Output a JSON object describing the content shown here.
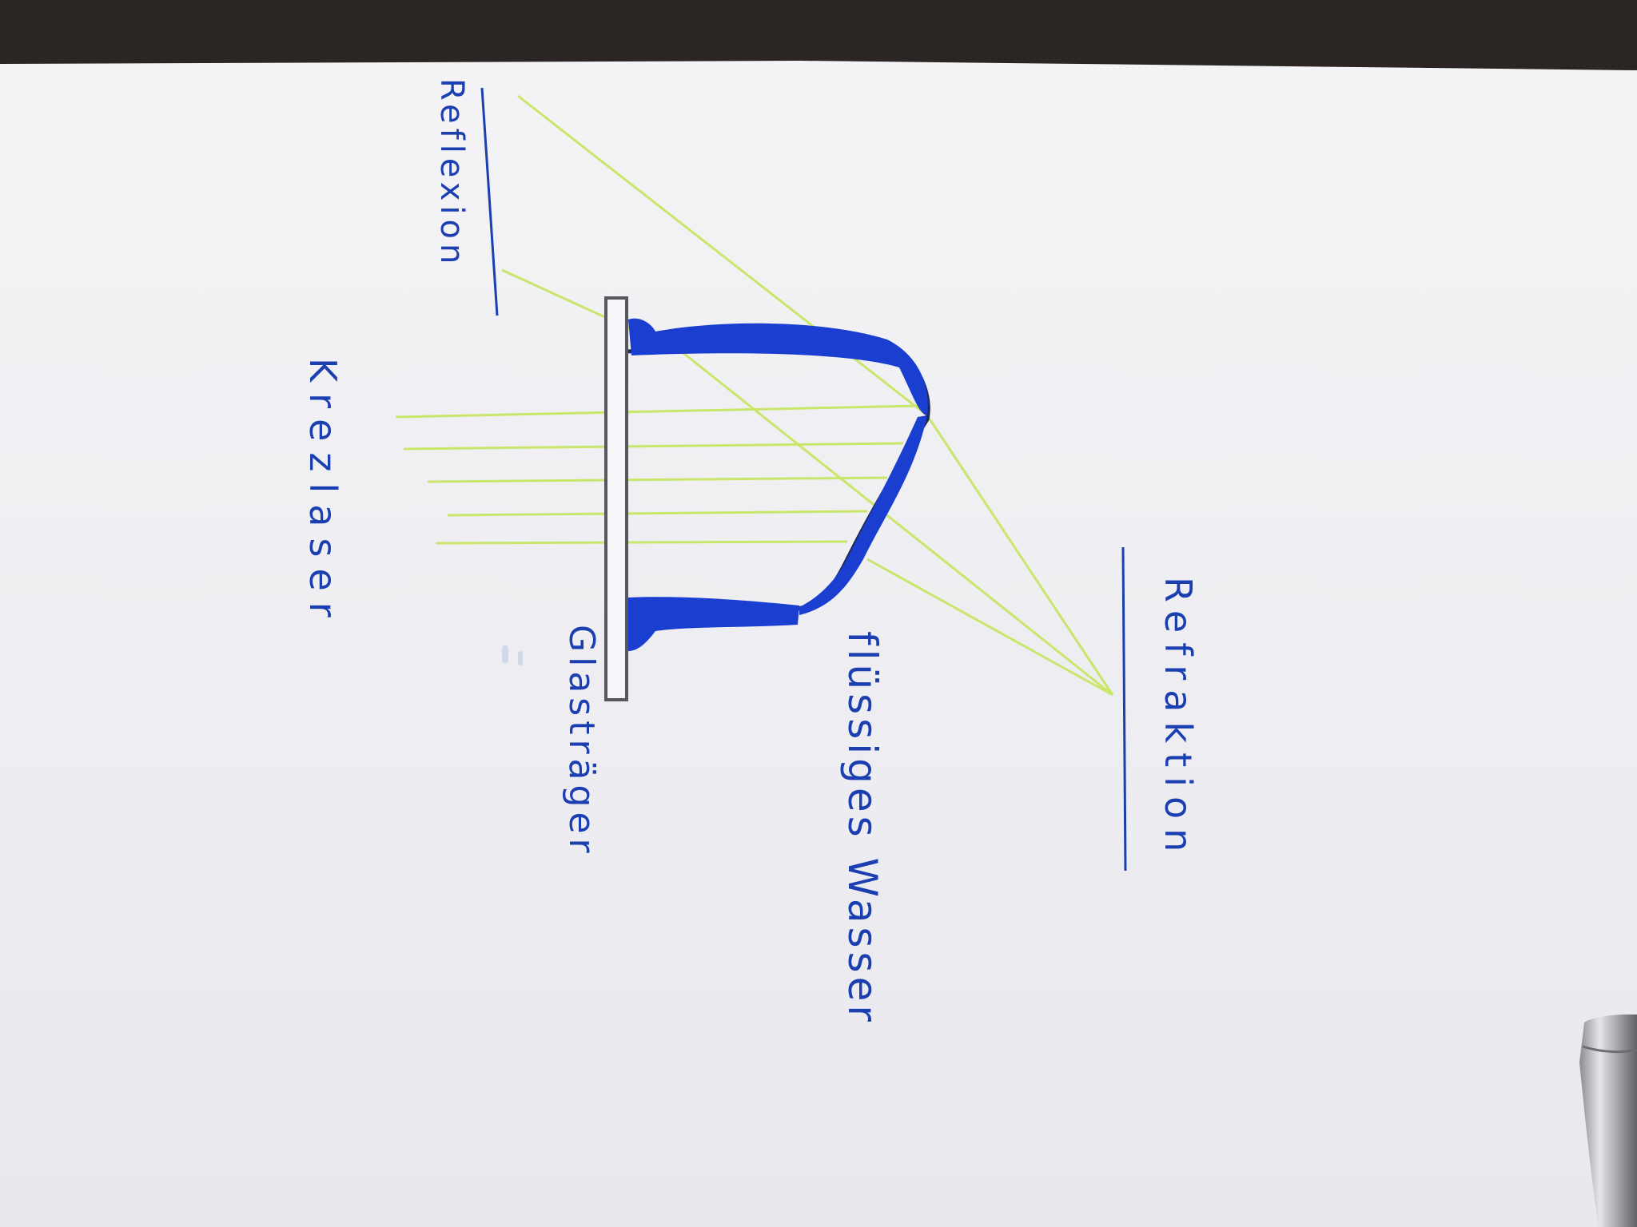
{
  "labels": {
    "reflexion": "Reflexion",
    "refraktion": "Refraktion",
    "krezlaser": "Krezlaser",
    "glastraeger": "Glasträger",
    "wasser": "flüssiges Wasser"
  },
  "colors": {
    "ink": "#1b3fb0",
    "water": "#1a3fd0",
    "laser": "#c8e66a",
    "glass": "#55585e",
    "paper": "#f1f1f4"
  }
}
